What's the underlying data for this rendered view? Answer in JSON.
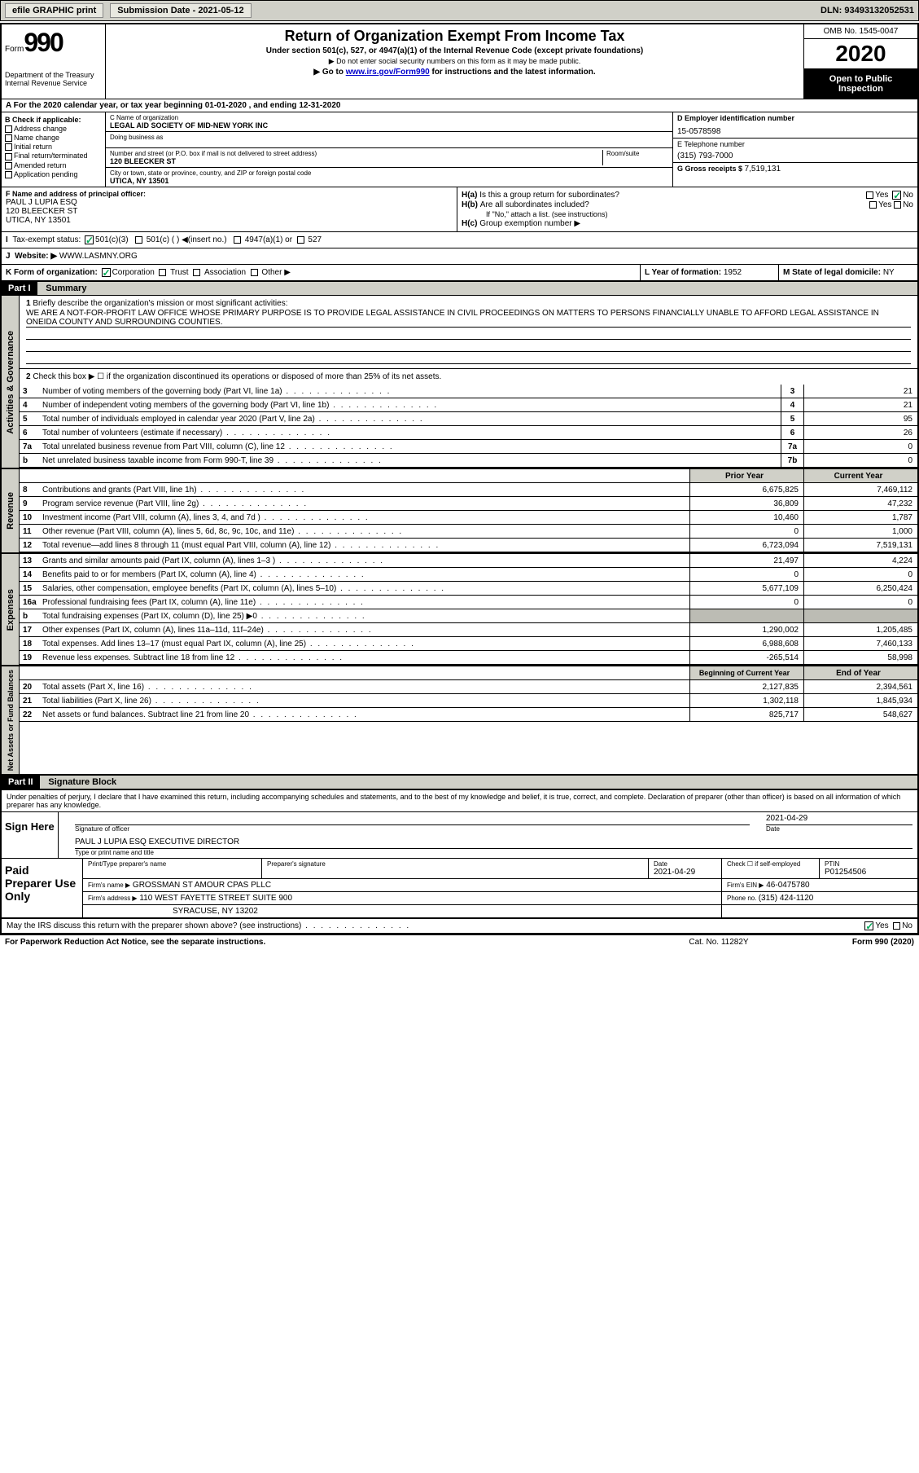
{
  "header": {
    "efile": "efile GRAPHIC print",
    "submission_label": "Submission Date - 2021-05-12",
    "dln": "DLN: 93493132052531"
  },
  "top": {
    "form_word": "Form",
    "form_num": "990",
    "dept": "Department of the Treasury\nInternal Revenue Service",
    "title": "Return of Organization Exempt From Income Tax",
    "sub1": "Under section 501(c), 527, or 4947(a)(1) of the Internal Revenue Code (except private foundations)",
    "sub2": "▶ Do not enter social security numbers on this form as it may be made public.",
    "sub3_pre": "▶ Go to ",
    "sub3_link": "www.irs.gov/Form990",
    "sub3_post": " for instructions and the latest information.",
    "omb": "OMB No. 1545-0047",
    "year": "2020",
    "inspect": "Open to Public Inspection"
  },
  "a": {
    "line": "A For the 2020 calendar year, or tax year beginning 01-01-2020   , and ending 12-31-2020"
  },
  "b": {
    "head": "B Check if applicable:",
    "items": [
      "Address change",
      "Name change",
      "Initial return",
      "Final return/terminated",
      "Amended return",
      "Application pending"
    ]
  },
  "c": {
    "name_lbl": "C Name of organization",
    "name": "LEGAL AID SOCIETY OF MID-NEW YORK INC",
    "dba_lbl": "Doing business as",
    "street_lbl": "Number and street (or P.O. box if mail is not delivered to street address)",
    "room_lbl": "Room/suite",
    "street": "120 BLEECKER ST",
    "city_lbl": "City or town, state or province, country, and ZIP or foreign postal code",
    "city": "UTICA, NY  13501"
  },
  "d": {
    "ein_lbl": "D Employer identification number",
    "ein": "15-0578598",
    "tel_lbl": "E Telephone number",
    "tel": "(315) 793-7000",
    "gross_lbl": "G Gross receipts $ ",
    "gross": "7,519,131"
  },
  "f": {
    "lbl": "F  Name and address of principal officer:",
    "name": "PAUL J LUPIA ESQ",
    "street": "120 BLEECKER ST",
    "city": "UTICA, NY  13501"
  },
  "h": {
    "a_lbl": "Is this a group return for subordinates?",
    "b_lbl": "Are all subordinates included?",
    "b_note": "If \"No,\" attach a list. (see instructions)",
    "c_lbl": "Group exemption number ▶",
    "yes": "Yes",
    "no": "No"
  },
  "i": {
    "lbl": "Tax-exempt status:",
    "o501c3": "501(c)(3)",
    "o501c": "501(c) ( )  ◀(insert no.)",
    "o4947": "4947(a)(1) or",
    "o527": "527"
  },
  "j": {
    "lbl": "Website: ▶",
    "val": "WWW.LASMNY.ORG"
  },
  "k": {
    "lbl": "K Form of organization:",
    "corp": "Corporation",
    "trust": "Trust",
    "assoc": "Association",
    "other": "Other ▶"
  },
  "l": {
    "lbl": "L Year of formation: ",
    "val": "1952"
  },
  "m": {
    "lbl": "M State of legal domicile: ",
    "val": "NY"
  },
  "part1": {
    "hdr": "Part I",
    "title": "Summary"
  },
  "act": {
    "vlabel": "Activities & Governance",
    "l1_lbl": "Briefly describe the organization's mission or most significant activities:",
    "l1_txt": "WE ARE A NOT-FOR-PROFIT LAW OFFICE WHOSE PRIMARY PURPOSE IS TO PROVIDE LEGAL ASSISTANCE IN CIVIL PROCEEDINGS ON MATTERS TO PERSONS FINANCIALLY UNABLE TO AFFORD LEGAL ASSISTANCE IN ONEIDA COUNTY AND SURROUNDING COUNTIES.",
    "l2_lbl": "Check this box ▶ ☐ if the organization discontinued its operations or disposed of more than 25% of its net assets.",
    "rows": [
      {
        "n": "3",
        "t": "Number of voting members of the governing body (Part VI, line 1a)",
        "b": "3",
        "v": "21"
      },
      {
        "n": "4",
        "t": "Number of independent voting members of the governing body (Part VI, line 1b)",
        "b": "4",
        "v": "21"
      },
      {
        "n": "5",
        "t": "Total number of individuals employed in calendar year 2020 (Part V, line 2a)",
        "b": "5",
        "v": "95"
      },
      {
        "n": "6",
        "t": "Total number of volunteers (estimate if necessary)",
        "b": "6",
        "v": "26"
      },
      {
        "n": "7a",
        "t": "Total unrelated business revenue from Part VIII, column (C), line 12",
        "b": "7a",
        "v": "0"
      },
      {
        "n": "b",
        "t": "Net unrelated business taxable income from Form 990-T, line 39",
        "b": "7b",
        "v": "0"
      }
    ]
  },
  "rev": {
    "vlabel": "Revenue",
    "py": "Prior Year",
    "cy": "Current Year",
    "rows": [
      {
        "n": "8",
        "t": "Contributions and grants (Part VIII, line 1h)",
        "py": "6,675,825",
        "cy": "7,469,112"
      },
      {
        "n": "9",
        "t": "Program service revenue (Part VIII, line 2g)",
        "py": "36,809",
        "cy": "47,232"
      },
      {
        "n": "10",
        "t": "Investment income (Part VIII, column (A), lines 3, 4, and 7d )",
        "py": "10,460",
        "cy": "1,787"
      },
      {
        "n": "11",
        "t": "Other revenue (Part VIII, column (A), lines 5, 6d, 8c, 9c, 10c, and 11e)",
        "py": "0",
        "cy": "1,000"
      },
      {
        "n": "12",
        "t": "Total revenue—add lines 8 through 11 (must equal Part VIII, column (A), line 12)",
        "py": "6,723,094",
        "cy": "7,519,131"
      }
    ]
  },
  "exp": {
    "vlabel": "Expenses",
    "rows": [
      {
        "n": "13",
        "t": "Grants and similar amounts paid (Part IX, column (A), lines 1–3 )",
        "py": "21,497",
        "cy": "4,224"
      },
      {
        "n": "14",
        "t": "Benefits paid to or for members (Part IX, column (A), line 4)",
        "py": "0",
        "cy": "0"
      },
      {
        "n": "15",
        "t": "Salaries, other compensation, employee benefits (Part IX, column (A), lines 5–10)",
        "py": "5,677,109",
        "cy": "6,250,424"
      },
      {
        "n": "16a",
        "t": "Professional fundraising fees (Part IX, column (A), line 11e)",
        "py": "0",
        "cy": "0"
      },
      {
        "n": "b",
        "t": "Total fundraising expenses (Part IX, column (D), line 25) ▶0",
        "py": "",
        "cy": "",
        "shade": true
      },
      {
        "n": "17",
        "t": "Other expenses (Part IX, column (A), lines 11a–11d, 11f–24e)",
        "py": "1,290,002",
        "cy": "1,205,485"
      },
      {
        "n": "18",
        "t": "Total expenses. Add lines 13–17 (must equal Part IX, column (A), line 25)",
        "py": "6,988,608",
        "cy": "7,460,133"
      },
      {
        "n": "19",
        "t": "Revenue less expenses. Subtract line 18 from line 12",
        "py": "-265,514",
        "cy": "58,998"
      }
    ]
  },
  "net": {
    "vlabel": "Net Assets or Fund Balances",
    "boy": "Beginning of Current Year",
    "eoy": "End of Year",
    "rows": [
      {
        "n": "20",
        "t": "Total assets (Part X, line 16)",
        "py": "2,127,835",
        "cy": "2,394,561"
      },
      {
        "n": "21",
        "t": "Total liabilities (Part X, line 26)",
        "py": "1,302,118",
        "cy": "1,845,934"
      },
      {
        "n": "22",
        "t": "Net assets or fund balances. Subtract line 21 from line 20",
        "py": "825,717",
        "cy": "548,627"
      }
    ]
  },
  "part2": {
    "hdr": "Part II",
    "title": "Signature Block"
  },
  "sig": {
    "decl": "Under penalties of perjury, I declare that I have examined this return, including accompanying schedules and statements, and to the best of my knowledge and belief, it is true, correct, and complete. Declaration of preparer (other than officer) is based on all information of which preparer has any knowledge.",
    "sign_here": "Sign Here",
    "sig_officer_lbl": "Signature of officer",
    "date_lbl": "Date",
    "date": "2021-04-29",
    "officer_name": "PAUL J LUPIA ESQ  EXECUTIVE DIRECTOR",
    "officer_lbl": "Type or print name and title"
  },
  "prep": {
    "paid": "Paid Preparer Use Only",
    "pt_name_lbl": "Print/Type preparer's name",
    "pt_sig_lbl": "Preparer's signature",
    "pt_date_lbl": "Date",
    "pt_date": "2021-04-29",
    "self_lbl": "Check ☐ if self-employed",
    "ptin_lbl": "PTIN",
    "ptin": "P01254506",
    "firm_name_lbl": "Firm's name   ▶",
    "firm_name": "GROSSMAN ST AMOUR CPAS PLLC",
    "firm_ein_lbl": "Firm's EIN ▶",
    "firm_ein": "46-0475780",
    "firm_addr_lbl": "Firm's address ▶",
    "firm_addr1": "110 WEST FAYETTE STREET SUITE 900",
    "firm_addr2": "SYRACUSE, NY  13202",
    "phone_lbl": "Phone no. ",
    "phone": "(315) 424-1120"
  },
  "discuss": {
    "txt": "May the IRS discuss this return with the preparer shown above? (see instructions)",
    "yes": "Yes",
    "no": "No"
  },
  "footer": {
    "pra": "For Paperwork Reduction Act Notice, see the separate instructions.",
    "cat": "Cat. No. 11282Y",
    "form": "Form 990 (2020)"
  }
}
